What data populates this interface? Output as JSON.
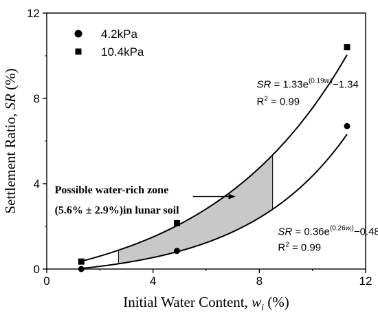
{
  "chart_data": {
    "type": "scatter",
    "xlabel": {
      "main": "Initial Water Content, ",
      "var": "w",
      "sub": "i",
      "unit": " (%)"
    },
    "ylabel": {
      "main": "Settlement Ratio, ",
      "var": "SR",
      "unit": " (%)"
    },
    "xlim": [
      0,
      12
    ],
    "ylim": [
      0,
      12
    ],
    "xticks": [
      0,
      4,
      8,
      12
    ],
    "yticks": [
      0,
      4,
      8,
      12
    ],
    "legend_position": "top-left",
    "series": [
      {
        "name": "4.2kPa",
        "marker": "circle",
        "points": [
          [
            1.3,
            0.0
          ],
          [
            4.9,
            0.85
          ],
          [
            11.3,
            6.7
          ]
        ],
        "fit": {
          "a": 0.36,
          "b": 0.26,
          "c": -0.48
        },
        "equation": {
          "lhs": "SR",
          "prefix": " = 0.36e",
          "exp_open": "(0.26",
          "exp_var": "w",
          "exp_sub": "i",
          "exp_close": ")",
          "suffix": "−0.48"
        },
        "r2": {
          "label": "R",
          "sup": "2",
          "value": " = 0.99"
        }
      },
      {
        "name": "10.4kPa",
        "marker": "square",
        "points": [
          [
            1.3,
            0.35
          ],
          [
            4.9,
            2.15
          ],
          [
            11.3,
            10.4
          ]
        ],
        "fit": {
          "a": 1.33,
          "b": 0.19,
          "c": -1.34
        },
        "equation": {
          "lhs": "SR",
          "prefix": " = 1.33e",
          "exp_open": "(0.19",
          "exp_var": "w",
          "exp_sub": "i",
          "exp_close": ")",
          "suffix": "−1.34"
        },
        "r2": {
          "label": "R",
          "sup": "2",
          "value": " = 0.99"
        }
      }
    ],
    "shaded_zone": {
      "x_range": [
        2.7,
        8.5
      ],
      "color": "#c8c8c8",
      "label_line1": "Possible water-rich zone",
      "label_line2": "(5.6% ± 2.9%)in lunar soil"
    },
    "colors": {
      "axes": "#000000",
      "markers": "#000000",
      "curves": "#000000"
    }
  }
}
